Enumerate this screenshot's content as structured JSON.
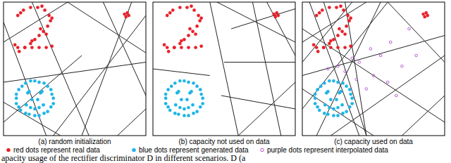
{
  "chart_data": [
    {
      "type": "scatter",
      "title": "(a) random initialization",
      "xlim": [
        0,
        100
      ],
      "ylim": [
        0,
        100
      ],
      "tick_labels": false,
      "series": [
        {
          "color": "#e8202a",
          "marker": "dot",
          "x": [
            10,
            14,
            19,
            24,
            29,
            32,
            33,
            31,
            28,
            25,
            22,
            19,
            15,
            11,
            10,
            15,
            20,
            25,
            30,
            34,
            12,
            27,
            34,
            20,
            26,
            8,
            30,
            85,
            87,
            86,
            88
          ],
          "values": [
            90,
            94,
            96,
            96,
            94,
            90,
            86,
            82,
            78,
            75,
            72,
            69,
            66,
            63,
            66,
            66,
            66,
            66,
            66,
            67,
            92,
            97,
            88,
            71,
            80,
            68,
            76,
            91,
            92,
            89,
            90
          ]
        },
        {
          "color": "#1eb4e6",
          "marker": "dot",
          "x": [
            35,
            33.3,
            28.5,
            22,
            15.5,
            10.7,
            9,
            10.7,
            15.5,
            22,
            28.5,
            33.3,
            34,
            31,
            25,
            19,
            13,
            9,
            9,
            12,
            18,
            25,
            31,
            35,
            17,
            18,
            26,
            27,
            16,
            19,
            22,
            25,
            28,
            20,
            24
          ],
          "values": [
            28,
            34.5,
            39.3,
            41,
            39.3,
            34.5,
            28,
            21.5,
            16.7,
            15,
            16.7,
            21.5,
            31,
            37,
            40,
            41,
            37,
            31,
            24,
            19,
            16,
            15,
            18,
            24,
            32,
            33,
            32,
            33,
            23,
            21,
            20,
            21,
            23,
            27,
            27
          ]
        }
      ],
      "boundaries": [
        [
          0,
          70,
          45,
          100
        ],
        [
          20,
          100,
          60,
          0
        ],
        [
          45,
          100,
          100,
          62
        ],
        [
          0,
          40,
          100,
          55
        ],
        [
          70,
          100,
          100,
          30
        ],
        [
          0,
          10,
          55,
          60
        ],
        [
          35,
          0,
          100,
          90
        ],
        [
          80,
          0,
          100,
          20
        ],
        [
          0,
          85,
          30,
          0
        ],
        [
          55,
          0,
          90,
          100
        ],
        [
          0,
          25,
          40,
          0
        ]
      ]
    },
    {
      "type": "scatter",
      "title": "(b) capacity not used on data",
      "xlim": [
        0,
        100
      ],
      "ylim": [
        0,
        100
      ],
      "tick_labels": false,
      "series": [
        {
          "color": "#e8202a",
          "marker": "dot",
          "x": [
            10,
            14,
            19,
            24,
            29,
            32,
            33,
            31,
            28,
            25,
            22,
            19,
            15,
            11,
            10,
            15,
            20,
            25,
            30,
            34,
            12,
            27,
            34,
            20,
            26,
            8,
            30,
            85,
            87,
            86,
            88
          ],
          "values": [
            90,
            94,
            96,
            96,
            94,
            90,
            86,
            82,
            78,
            75,
            72,
            69,
            66,
            63,
            66,
            66,
            66,
            66,
            66,
            67,
            92,
            97,
            88,
            71,
            80,
            68,
            76,
            91,
            92,
            89,
            90
          ]
        },
        {
          "color": "#1eb4e6",
          "marker": "dot",
          "x": [
            35,
            33.3,
            28.5,
            22,
            15.5,
            10.7,
            9,
            10.7,
            15.5,
            22,
            28.5,
            33.3,
            34,
            31,
            25,
            19,
            13,
            9,
            9,
            12,
            18,
            25,
            31,
            35,
            17,
            18,
            26,
            27,
            16,
            19,
            22,
            25,
            28,
            20,
            24
          ],
          "values": [
            28,
            34.5,
            39.3,
            41,
            39.3,
            34.5,
            28,
            21.5,
            16.7,
            15,
            16.7,
            21.5,
            31,
            37,
            40,
            41,
            37,
            31,
            24,
            19,
            16,
            15,
            18,
            24,
            32,
            33,
            32,
            33,
            23,
            21,
            20,
            21,
            23,
            27,
            27
          ]
        }
      ],
      "boundaries": [
        [
          40,
          100,
          60,
          0
        ],
        [
          45,
          100,
          100,
          70
        ],
        [
          60,
          0,
          100,
          40
        ],
        [
          70,
          100,
          90,
          0
        ],
        [
          50,
          55,
          100,
          55
        ],
        [
          55,
          80,
          100,
          95
        ],
        [
          48,
          30,
          100,
          20
        ],
        [
          0,
          50,
          40,
          45
        ],
        [
          80,
          100,
          100,
          60
        ]
      ]
    },
    {
      "type": "scatter",
      "title": "(c) capacity used on data",
      "xlim": [
        0,
        100
      ],
      "ylim": [
        0,
        100
      ],
      "tick_labels": false,
      "series": [
        {
          "color": "#e8202a",
          "marker": "dot",
          "x": [
            10,
            14,
            19,
            24,
            29,
            32,
            33,
            31,
            28,
            25,
            22,
            19,
            15,
            11,
            10,
            15,
            20,
            25,
            30,
            34,
            12,
            27,
            34,
            20,
            26,
            8,
            30,
            85,
            87,
            86,
            88
          ],
          "values": [
            90,
            94,
            96,
            96,
            94,
            90,
            86,
            82,
            78,
            75,
            72,
            69,
            66,
            63,
            66,
            66,
            66,
            66,
            66,
            67,
            92,
            97,
            88,
            71,
            80,
            68,
            76,
            91,
            92,
            89,
            90
          ]
        },
        {
          "color": "#1eb4e6",
          "marker": "dot",
          "x": [
            35,
            33.3,
            28.5,
            22,
            15.5,
            10.7,
            9,
            10.7,
            15.5,
            22,
            28.5,
            33.3,
            34,
            31,
            25,
            19,
            13,
            9,
            9,
            12,
            18,
            25,
            31,
            35,
            17,
            18,
            26,
            27,
            16,
            19,
            22,
            25,
            28,
            20,
            24
          ],
          "values": [
            28,
            34.5,
            39.3,
            41,
            39.3,
            34.5,
            28,
            21.5,
            16.7,
            15,
            16.7,
            21.5,
            31,
            37,
            40,
            41,
            37,
            31,
            24,
            19,
            16,
            15,
            18,
            24,
            32,
            33,
            32,
            33,
            23,
            21,
            20,
            21,
            23,
            27,
            27
          ]
        },
        {
          "color": "#b04fd0",
          "marker": "circle",
          "x": [
            18,
            30,
            40,
            50,
            55,
            60,
            70,
            45,
            62,
            75,
            35,
            25,
            80,
            48,
            38,
            66
          ],
          "values": [
            50,
            48,
            55,
            45,
            60,
            40,
            52,
            35,
            70,
            80,
            58,
            52,
            60,
            65,
            42,
            30
          ]
        }
      ],
      "boundaries": [
        [
          0,
          70,
          45,
          100
        ],
        [
          5,
          100,
          40,
          0
        ],
        [
          0,
          45,
          100,
          75
        ],
        [
          0,
          20,
          60,
          100
        ],
        [
          10,
          0,
          55,
          100
        ],
        [
          30,
          100,
          45,
          0
        ],
        [
          0,
          80,
          100,
          10
        ],
        [
          0,
          35,
          50,
          0
        ],
        [
          20,
          0,
          100,
          60
        ],
        [
          60,
          100,
          100,
          55
        ],
        [
          70,
          0,
          100,
          30
        ],
        [
          0,
          55,
          35,
          100
        ],
        [
          45,
          0,
          15,
          100
        ]
      ]
    }
  ],
  "key": [
    {
      "label": "red dots represent real data",
      "color": "#e8202a",
      "marker": "dot"
    },
    {
      "label": "blue dots represent generated data",
      "color": "#1eb4e6",
      "marker": "dot"
    },
    {
      "label": "purple dots represent interpolated data",
      "color": "#b04fd0",
      "marker": "circle"
    }
  ],
  "caption": "apacity usage of the rectifier discriminator D in different scenarios. D (a"
}
